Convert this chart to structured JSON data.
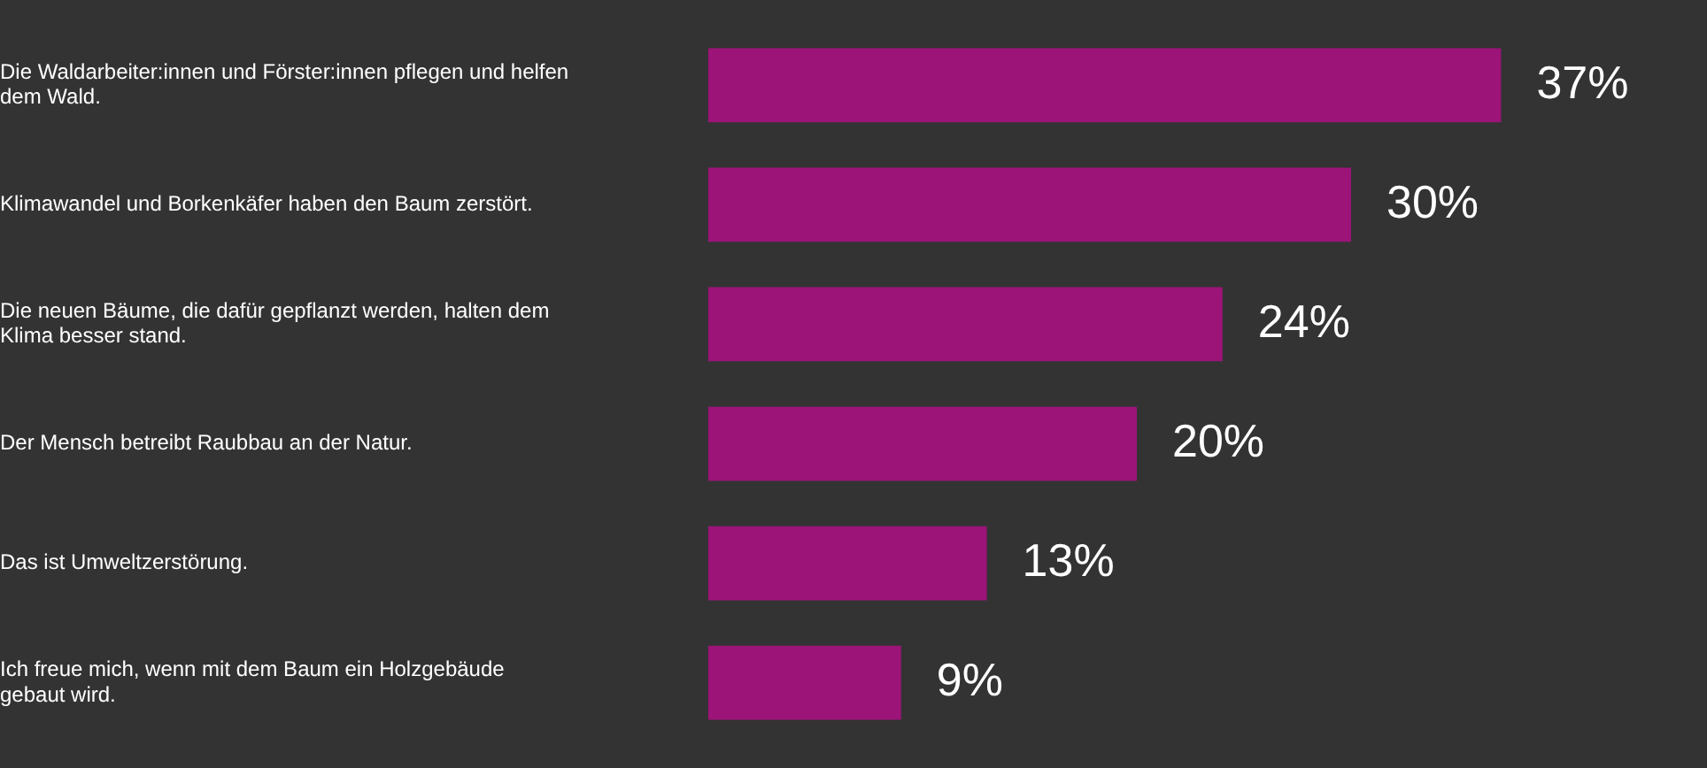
{
  "chart_data": {
    "type": "bar",
    "orientation": "horizontal",
    "categories": [
      "Die Waldarbeiter:innen und Förster:innen pflegen und helfen dem Wald.",
      "Klimawandel und Borkenkäfer haben den Baum zerstört.",
      "Die neuen Bäume, die dafür gepflanzt werden, halten dem Klima besser stand.",
      "Der Mensch betreibt Raubbau an der Natur.",
      "Das ist Umweltzerstörung.",
      "Ich freue mich, wenn mit dem Baum ein Holzgebäude gebaut wird."
    ],
    "values": [
      37,
      30,
      24,
      20,
      13,
      9
    ],
    "value_labels": [
      "37%",
      "30%",
      "24%",
      "20%",
      "13%",
      "9%"
    ],
    "color": "#9c1478",
    "tick_labels": "y"
  }
}
